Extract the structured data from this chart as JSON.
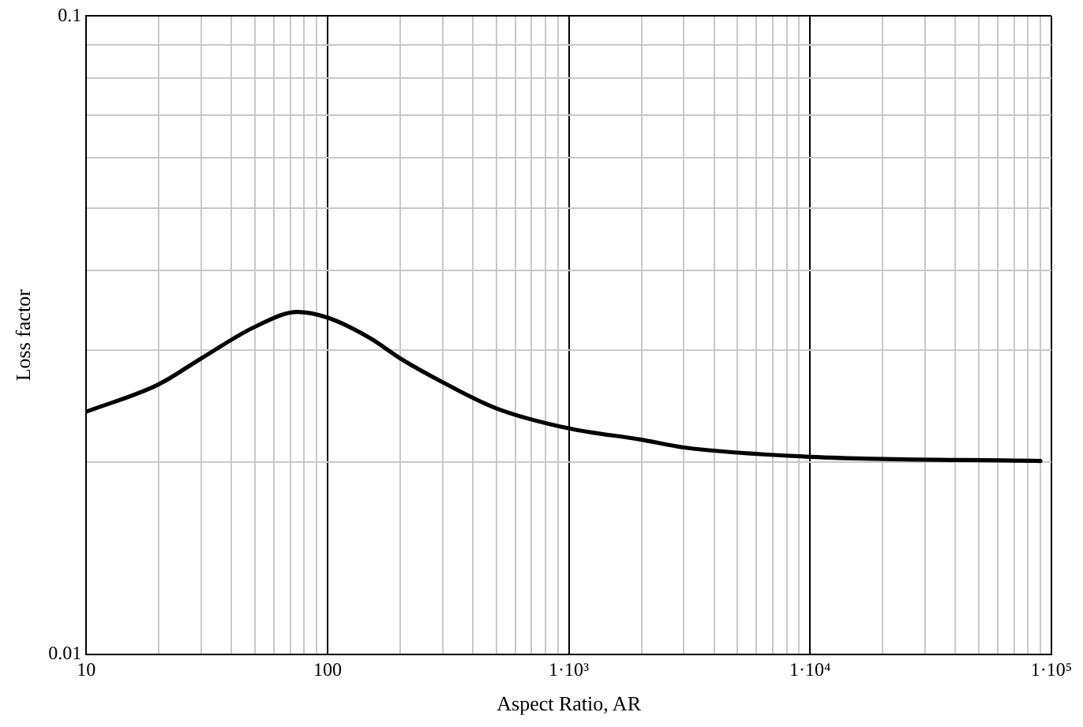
{
  "chart_data": {
    "type": "line",
    "xlabel": "Aspect Ratio, AR",
    "ylabel": "Loss factor",
    "log": "xy",
    "grid": true,
    "legend": false,
    "marker": "none",
    "line_style": "solid",
    "xlim": [
      10,
      100000
    ],
    "ylim": [
      0.01,
      0.1
    ],
    "xticks": [
      10,
      {
        "value": 20,
        "label": null
      },
      {
        "value": 30,
        "label": null
      },
      {
        "value": 40,
        "label": null
      },
      {
        "value": 50,
        "label": null
      },
      {
        "value": 60,
        "label": null
      },
      {
        "value": 70,
        "label": null
      },
      {
        "value": 80,
        "label": null
      },
      {
        "value": 90,
        "label": null
      },
      100,
      {
        "value": 200,
        "label": null
      },
      {
        "value": 300,
        "label": null
      },
      {
        "value": 400,
        "label": null
      },
      {
        "value": 500,
        "label": null
      },
      {
        "value": 600,
        "label": null
      },
      {
        "value": 700,
        "label": null
      },
      {
        "value": 800,
        "label": null
      },
      {
        "value": 900,
        "label": null
      },
      {
        "value": 1000,
        "label": "1·10³"
      },
      {
        "value": 2000,
        "label": null
      },
      {
        "value": 3000,
        "label": null
      },
      {
        "value": 4000,
        "label": null
      },
      {
        "value": 5000,
        "label": null
      },
      {
        "value": 6000,
        "label": null
      },
      {
        "value": 7000,
        "label": null
      },
      {
        "value": 8000,
        "label": null
      },
      {
        "value": 9000,
        "label": null
      },
      {
        "value": 10000,
        "label": "1·10⁴"
      },
      {
        "value": 20000,
        "label": null
      },
      {
        "value": 30000,
        "label": null
      },
      {
        "value": 40000,
        "label": null
      },
      {
        "value": 50000,
        "label": null
      },
      {
        "value": 60000,
        "label": null
      },
      {
        "value": 70000,
        "label": null
      },
      {
        "value": 80000,
        "label": null
      },
      {
        "value": 90000,
        "label": null
      },
      {
        "value": 100000,
        "label": "1·10⁵"
      }
    ],
    "yticks": [
      0.01,
      {
        "value": 0.02,
        "label": null
      },
      {
        "value": 0.03,
        "label": null
      },
      {
        "value": 0.04,
        "label": null
      },
      {
        "value": 0.05,
        "label": null
      },
      {
        "value": 0.06,
        "label": null
      },
      {
        "value": 0.07,
        "label": null
      },
      {
        "value": 0.08,
        "label": null
      },
      {
        "value": 0.09,
        "label": null
      },
      0.1
    ],
    "series": [
      {
        "color": "#000000",
        "x": [
          10,
          20,
          30,
          50,
          75,
          100,
          150,
          200,
          300,
          500,
          1000,
          2000,
          3000,
          10000,
          90000
        ],
        "values": [
          0.024,
          0.0265,
          0.0291,
          0.0326,
          0.0344,
          0.0337,
          0.0313,
          0.0291,
          0.0267,
          0.0243,
          0.0226,
          0.0217,
          0.0211,
          0.0204,
          0.0201
        ]
      }
    ]
  }
}
